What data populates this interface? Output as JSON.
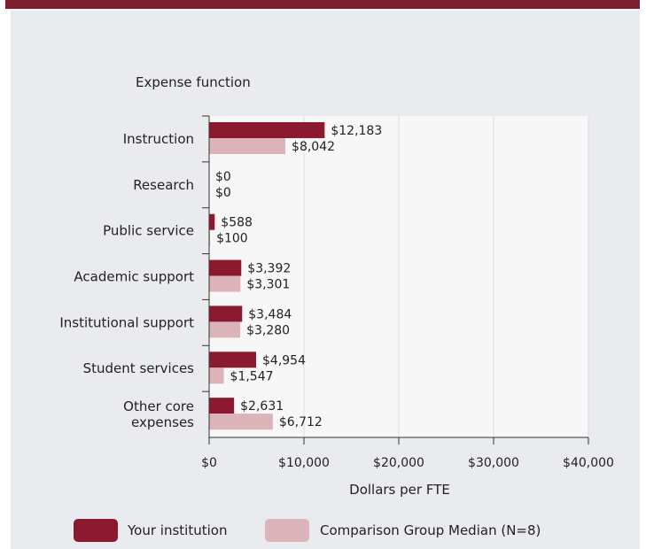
{
  "colors": {
    "your_institution": "#8b1a30",
    "comparison": "#ddb3ba",
    "plot_bg": "#f7f7f7",
    "grid": "#d8dde8",
    "top_bar": "#7b1e2e"
  },
  "chart_data": {
    "type": "bar",
    "orientation": "horizontal",
    "title": "Expense function",
    "xlabel": "Dollars per FTE",
    "xlim": [
      0,
      40000
    ],
    "x_ticks": [
      0,
      10000,
      20000,
      30000,
      40000
    ],
    "x_tick_labels": [
      "$0",
      "$10,000",
      "$20,000",
      "$30,000",
      "$40,000"
    ],
    "grid": true,
    "legend_position": "bottom",
    "categories": [
      "Instruction",
      "Research",
      "Public service",
      "Academic support",
      "Institutional support",
      "Student services",
      "Other core expenses"
    ],
    "category_lines": [
      [
        "Instruction"
      ],
      [
        "Research"
      ],
      [
        "Public service"
      ],
      [
        "Academic support"
      ],
      [
        "Institutional support"
      ],
      [
        "Student services"
      ],
      [
        "Other core",
        "expenses"
      ]
    ],
    "series": [
      {
        "name": "Your institution",
        "values": [
          12183,
          0,
          588,
          3392,
          3484,
          4954,
          2631
        ],
        "labels": [
          "$12,183",
          "$0",
          "$588",
          "$3,392",
          "$3,484",
          "$4,954",
          "$2,631"
        ]
      },
      {
        "name": "Comparison Group Median (N=8)",
        "values": [
          8042,
          0,
          100,
          3301,
          3280,
          1547,
          6712
        ],
        "labels": [
          "$8,042",
          "$0",
          "$100",
          "$3,301",
          "$3,280",
          "$1,547",
          "$6,712"
        ]
      }
    ]
  }
}
